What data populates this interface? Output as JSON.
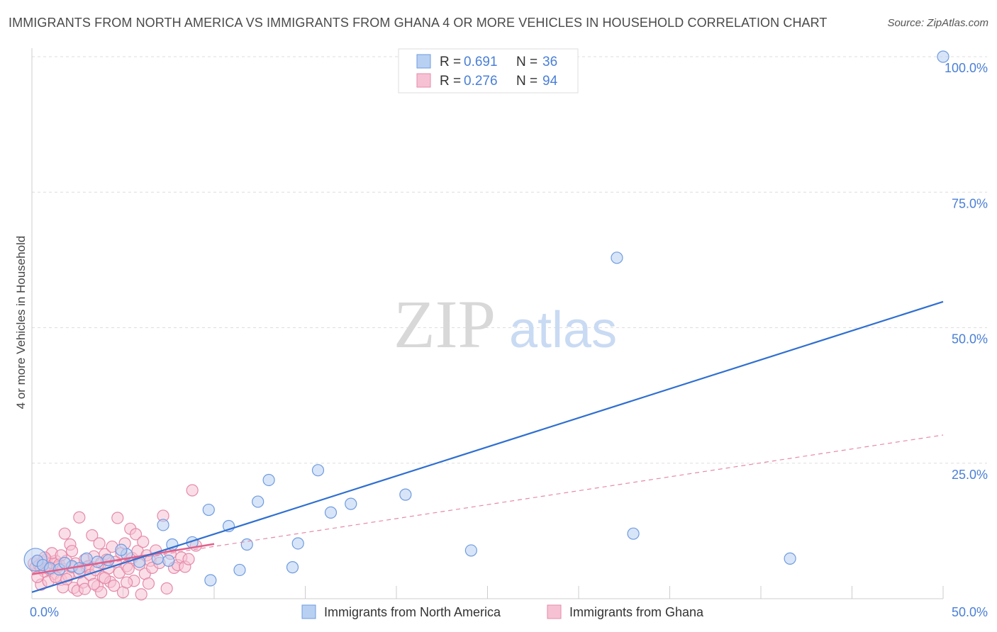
{
  "chart_data": {
    "type": "scatter",
    "title": "IMMIGRANTS FROM NORTH AMERICA VS IMMIGRANTS FROM GHANA 4 OR MORE VEHICLES IN HOUSEHOLD CORRELATION CHART",
    "source": "Source: ZipAtlas.com",
    "xlabel": "",
    "ylabel": "4 or more Vehicles in Household",
    "xlim": [
      0,
      50
    ],
    "ylim": [
      0,
      100
    ],
    "x_tick_labels": [
      "0.0%",
      "50.0%"
    ],
    "y_tick_labels": [
      "25.0%",
      "50.0%",
      "75.0%",
      "100.0%"
    ],
    "y_ticks": [
      25,
      50,
      75,
      100
    ],
    "watermark": {
      "part1": "ZIP",
      "part2": "atlas"
    },
    "legend": [
      {
        "r_label": "R =",
        "r_value": "0.691",
        "n_label": "N =",
        "n_value": "36"
      },
      {
        "r_label": "R =",
        "r_value": "0.276",
        "n_label": "N =",
        "n_value": "94"
      }
    ],
    "series": [
      {
        "name": "Immigrants from North America",
        "color": "#6f9be0",
        "fill": "#b8d0f2",
        "trend": {
          "x": [
            0,
            50
          ],
          "y": [
            1.2,
            54.8
          ],
          "style": "solid"
        },
        "points": [
          [
            0.3,
            7.0
          ],
          [
            0.6,
            6.2
          ],
          [
            1.0,
            5.6
          ],
          [
            1.5,
            5.4
          ],
          [
            2.2,
            6.0
          ],
          [
            3.0,
            7.4
          ],
          [
            4.2,
            7.1
          ],
          [
            5.2,
            8.2
          ],
          [
            5.9,
            6.8
          ],
          [
            6.9,
            7.4
          ],
          [
            7.2,
            13.6
          ],
          [
            7.5,
            7.0
          ],
          [
            7.7,
            10.0
          ],
          [
            8.8,
            10.4
          ],
          [
            9.7,
            16.4
          ],
          [
            9.8,
            3.4
          ],
          [
            10.8,
            13.4
          ],
          [
            11.4,
            5.3
          ],
          [
            11.8,
            10.0
          ],
          [
            12.4,
            17.9
          ],
          [
            13.0,
            21.9
          ],
          [
            14.3,
            5.8
          ],
          [
            14.6,
            10.2
          ],
          [
            15.7,
            23.7
          ],
          [
            16.4,
            15.9
          ],
          [
            17.5,
            17.5
          ],
          [
            20.5,
            19.2
          ],
          [
            24.1,
            8.9
          ],
          [
            32.1,
            62.9
          ],
          [
            33.0,
            12.0
          ],
          [
            41.6,
            7.4
          ],
          [
            50.0,
            100.0
          ],
          [
            2.6,
            5.6
          ],
          [
            3.6,
            6.8
          ],
          [
            1.8,
            6.6
          ],
          [
            4.9,
            9.0
          ]
        ],
        "big_point": [
          0.2,
          7.2
        ]
      },
      {
        "name": "Immigrants from Ghana",
        "color": "#e58aa8",
        "fill": "#f6c2d3",
        "trend": {
          "x": [
            0,
            50
          ],
          "y": [
            4.5,
            30.2
          ],
          "style": "dashed"
        },
        "trend_solid": {
          "x": [
            0,
            10.0
          ],
          "y": [
            4.5,
            10.1
          ]
        },
        "points": [
          [
            0.1,
            6.5
          ],
          [
            0.2,
            5.8
          ],
          [
            0.3,
            7.0
          ],
          [
            0.4,
            6.2
          ],
          [
            0.5,
            5.5
          ],
          [
            0.6,
            6.8
          ],
          [
            0.7,
            5.0
          ],
          [
            0.8,
            7.2
          ],
          [
            0.9,
            6.0
          ],
          [
            1.0,
            5.3
          ],
          [
            1.1,
            6.6
          ],
          [
            1.2,
            4.6
          ],
          [
            1.3,
            7.0
          ],
          [
            1.4,
            5.8
          ],
          [
            1.5,
            6.3
          ],
          [
            1.6,
            3.5
          ],
          [
            1.7,
            5.5
          ],
          [
            1.8,
            12.0
          ],
          [
            1.9,
            7.0
          ],
          [
            2.0,
            4.2
          ],
          [
            2.1,
            10.0
          ],
          [
            2.2,
            5.8
          ],
          [
            2.3,
            2.0
          ],
          [
            2.4,
            6.5
          ],
          [
            2.5,
            1.5
          ],
          [
            2.6,
            15.0
          ],
          [
            2.7,
            5.3
          ],
          [
            2.8,
            3.0
          ],
          [
            2.9,
            7.2
          ],
          [
            3.0,
            5.8
          ],
          [
            3.1,
            6.0
          ],
          [
            3.2,
            4.4
          ],
          [
            3.3,
            11.7
          ],
          [
            3.4,
            7.8
          ],
          [
            3.5,
            5.3
          ],
          [
            3.6,
            2.3
          ],
          [
            3.7,
            10.2
          ],
          [
            3.8,
            6.6
          ],
          [
            3.9,
            4.0
          ],
          [
            4.0,
            8.2
          ],
          [
            4.1,
            7.2
          ],
          [
            4.2,
            5.6
          ],
          [
            4.3,
            3.1
          ],
          [
            4.4,
            9.6
          ],
          [
            4.5,
            2.4
          ],
          [
            4.6,
            6.8
          ],
          [
            4.7,
            14.9
          ],
          [
            4.8,
            4.8
          ],
          [
            4.9,
            8.4
          ],
          [
            5.0,
            1.2
          ],
          [
            5.1,
            10.2
          ],
          [
            5.2,
            6.0
          ],
          [
            5.3,
            5.5
          ],
          [
            5.4,
            12.9
          ],
          [
            5.5,
            7.5
          ],
          [
            5.6,
            3.3
          ],
          [
            5.7,
            11.9
          ],
          [
            5.8,
            8.8
          ],
          [
            5.9,
            6.3
          ],
          [
            6.0,
            0.8
          ],
          [
            6.1,
            10.5
          ],
          [
            6.2,
            4.6
          ],
          [
            6.3,
            8.0
          ],
          [
            6.4,
            2.8
          ],
          [
            6.5,
            7.0
          ],
          [
            6.6,
            5.7
          ],
          [
            6.8,
            8.9
          ],
          [
            7.0,
            6.6
          ],
          [
            7.2,
            15.3
          ],
          [
            7.4,
            1.9
          ],
          [
            7.6,
            8.3
          ],
          [
            7.8,
            5.7
          ],
          [
            8.0,
            6.2
          ],
          [
            8.2,
            7.6
          ],
          [
            8.4,
            5.9
          ],
          [
            8.6,
            7.3
          ],
          [
            8.8,
            20.0
          ],
          [
            9.0,
            9.8
          ],
          [
            0.5,
            2.6
          ],
          [
            0.9,
            3.2
          ],
          [
            1.3,
            4.0
          ],
          [
            1.7,
            2.1
          ],
          [
            2.9,
            1.8
          ],
          [
            3.8,
            1.2
          ],
          [
            1.1,
            8.4
          ],
          [
            1.6,
            8.0
          ],
          [
            2.2,
            8.8
          ],
          [
            0.3,
            4.0
          ],
          [
            0.7,
            7.6
          ],
          [
            1.9,
            3.6
          ],
          [
            2.6,
            4.8
          ],
          [
            3.4,
            2.7
          ],
          [
            4.0,
            3.8
          ],
          [
            5.2,
            3.0
          ]
        ]
      }
    ]
  }
}
